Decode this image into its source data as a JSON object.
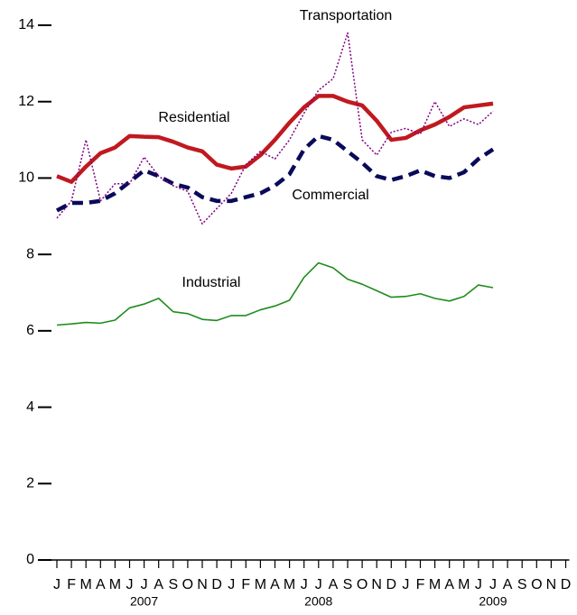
{
  "chart_data": {
    "type": "line",
    "categories": [
      "J",
      "F",
      "M",
      "A",
      "M",
      "J",
      "J",
      "A",
      "S",
      "O",
      "N",
      "D",
      "J",
      "F",
      "M",
      "A",
      "M",
      "J",
      "J",
      "A",
      "S",
      "O",
      "N",
      "D",
      "J",
      "F",
      "M",
      "A",
      "M",
      "J",
      "J",
      "A",
      "S",
      "O",
      "N",
      "D"
    ],
    "years": [
      "2007",
      "2008",
      "2009"
    ],
    "ylim": [
      0,
      14
    ],
    "yticks": [
      0,
      2,
      4,
      6,
      8,
      10,
      12,
      14
    ],
    "series": [
      {
        "name": "Residential",
        "color": "#c0191f",
        "values": [
          10.05,
          9.9,
          10.3,
          10.65,
          10.8,
          11.1,
          11.08,
          11.07,
          10.95,
          10.8,
          10.7,
          10.35,
          10.25,
          10.3,
          10.6,
          11.0,
          11.45,
          11.85,
          12.15,
          12.15,
          12.0,
          11.9,
          11.5,
          11.0,
          11.05,
          11.25,
          11.4,
          11.6,
          11.85,
          11.9,
          11.95,
          null,
          null,
          null,
          null,
          null
        ]
      },
      {
        "name": "Commercial",
        "color": "#0a0a5a",
        "values": [
          9.15,
          9.35,
          9.35,
          9.4,
          9.6,
          9.9,
          10.2,
          10.05,
          9.85,
          9.75,
          9.5,
          9.4,
          9.4,
          9.5,
          9.6,
          9.8,
          10.1,
          10.75,
          11.1,
          11.0,
          10.7,
          10.4,
          10.05,
          9.95,
          10.05,
          10.2,
          10.05,
          10.0,
          10.15,
          10.5,
          10.75,
          null,
          null,
          null,
          null,
          null
        ]
      },
      {
        "name": "Transportation",
        "color": "#800080",
        "values": [
          8.95,
          9.4,
          11.0,
          9.4,
          9.85,
          9.85,
          10.55,
          10.05,
          9.8,
          9.65,
          8.8,
          9.2,
          9.6,
          10.35,
          10.7,
          10.5,
          11.0,
          11.7,
          12.3,
          12.6,
          13.8,
          11.0,
          10.6,
          11.2,
          11.3,
          11.15,
          12.0,
          11.35,
          11.55,
          11.4,
          11.75,
          null,
          null,
          null,
          null,
          null
        ]
      },
      {
        "name": "Industrial",
        "color": "#1e8c1e",
        "values": [
          6.15,
          6.18,
          6.22,
          6.2,
          6.28,
          6.6,
          6.7,
          6.85,
          6.5,
          6.45,
          6.3,
          6.27,
          6.4,
          6.4,
          6.55,
          6.65,
          6.8,
          7.4,
          7.78,
          7.65,
          7.35,
          7.22,
          7.05,
          6.88,
          6.9,
          6.97,
          6.85,
          6.78,
          6.9,
          7.2,
          7.13,
          null,
          null,
          null,
          null,
          null
        ]
      }
    ]
  }
}
